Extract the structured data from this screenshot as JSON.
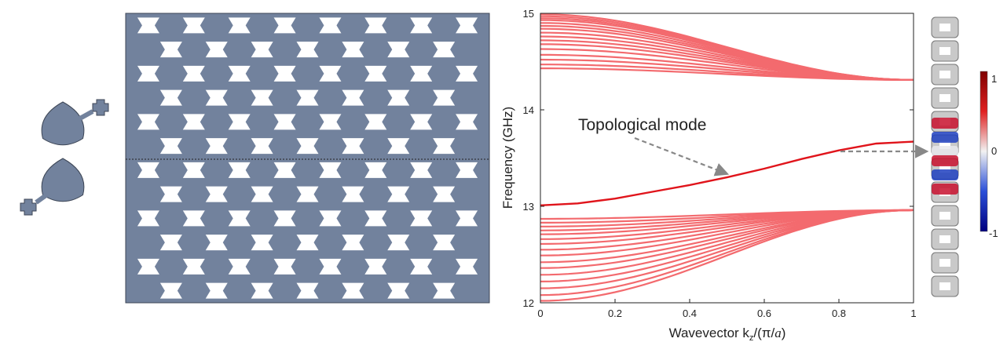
{
  "colors": {
    "shape": "#72829d",
    "shape_edge": "#3d4656",
    "band": "#f36a6e",
    "topological": "#e0141b",
    "arrow": "#888888",
    "axis": "#222222"
  },
  "colorbar": {
    "max_label": "1",
    "mid_label": "0",
    "min_label": "-1"
  },
  "chart_data": {
    "type": "line",
    "xlabel_main": "Wavevector k",
    "xlabel_sub": "z",
    "xlabel_tail": "/(π/",
    "xlabel_a": "a",
    "xlabel_close": ")",
    "ylabel": "Frequency (GHz)",
    "xlim": [
      0,
      1
    ],
    "ylim": [
      12,
      15
    ],
    "xticks": [
      "0",
      "0.2",
      "0.4",
      "0.6",
      "0.8",
      "1"
    ],
    "yticks": [
      "12",
      "13",
      "14",
      "15"
    ],
    "annotation": "Topological mode",
    "topological_mode": {
      "x": [
        0,
        0.1,
        0.2,
        0.3,
        0.4,
        0.5,
        0.6,
        0.7,
        0.8,
        0.9,
        1.0
      ],
      "y": [
        13.01,
        13.03,
        13.08,
        13.15,
        13.22,
        13.3,
        13.39,
        13.49,
        13.58,
        13.65,
        13.67
      ]
    },
    "upper_bands": {
      "converge_to": 14.31,
      "start_values": [
        14.43,
        14.47,
        14.52,
        14.57,
        14.63,
        14.68,
        14.72,
        14.76,
        14.8,
        14.84,
        14.87,
        14.9,
        14.93,
        14.95,
        14.97,
        14.99
      ]
    },
    "lower_bands": {
      "converge_to": 12.96,
      "start_values": [
        12.02,
        12.08,
        12.15,
        12.22,
        12.29,
        12.36,
        12.42,
        12.49,
        12.55,
        12.61,
        12.66,
        12.71,
        12.75,
        12.79,
        12.83,
        12.87
      ]
    }
  }
}
